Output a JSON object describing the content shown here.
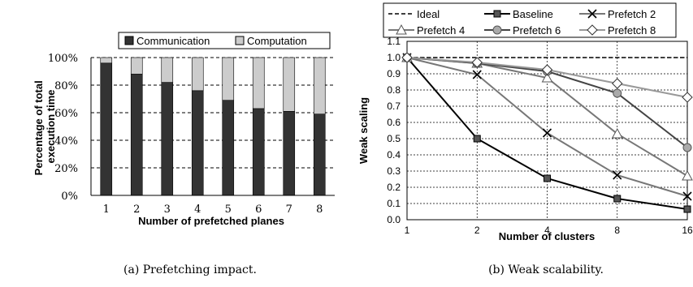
{
  "chart_data": [
    {
      "type": "bar",
      "stacked": true,
      "title": "",
      "categories": [
        "1",
        "2",
        "3",
        "4",
        "5",
        "6",
        "7",
        "8"
      ],
      "series": [
        {
          "name": "Communication",
          "values": [
            96,
            88,
            82,
            76,
            69,
            63,
            61,
            59
          ],
          "color": "#333333"
        },
        {
          "name": "Computation",
          "values": [
            4,
            12,
            18,
            24,
            31,
            37,
            39,
            41
          ],
          "color": "#cccccc"
        }
      ],
      "xlabel": "Number of prefetched planes",
      "ylabel": "Percentage of total execution time",
      "ylim": [
        0,
        100
      ],
      "yticks": [
        "0%",
        "20%",
        "40%",
        "60%",
        "80%",
        "100%"
      ],
      "grid": "horizontal dashed",
      "legend": "top"
    },
    {
      "type": "line",
      "title": "",
      "x": [
        "1",
        "2",
        "4",
        "8",
        "16"
      ],
      "series": [
        {
          "name": "Ideal",
          "values": [
            1.0,
            1.0,
            1.0,
            1.0,
            1.0
          ],
          "color": "#000000",
          "dash": true,
          "marker": "none"
        },
        {
          "name": "Baseline",
          "values": [
            1.0,
            0.5,
            0.255,
            0.13,
            0.065
          ],
          "color": "#000000",
          "marker": "square"
        },
        {
          "name": "Prefetch 2",
          "values": [
            1.0,
            0.895,
            0.535,
            0.275,
            0.145
          ],
          "color": "#777777",
          "marker": "x"
        },
        {
          "name": "Prefetch 4",
          "values": [
            1.0,
            0.965,
            0.875,
            0.53,
            0.27
          ],
          "color": "#777777",
          "marker": "triangle"
        },
        {
          "name": "Prefetch 6",
          "values": [
            1.0,
            0.965,
            0.915,
            0.78,
            0.445
          ],
          "color": "#444444",
          "marker": "circle"
        },
        {
          "name": "Prefetch 8",
          "values": [
            1.0,
            0.97,
            0.925,
            0.84,
            0.755
          ],
          "color": "#999999",
          "marker": "diamond"
        }
      ],
      "xlabel": "Number of clusters",
      "ylabel": "Weak scaling",
      "ylim": [
        0,
        1.1
      ],
      "yticks": [
        "0.0",
        "0.1",
        "0.2",
        "0.3",
        "0.4",
        "0.5",
        "0.6",
        "0.7",
        "0.8",
        "0.9",
        "1.0",
        "1.1"
      ],
      "grid": "dashed",
      "legend": "top"
    }
  ],
  "captions": {
    "a": "(a) Prefetching impact.",
    "b": "(b) Weak scalability."
  }
}
